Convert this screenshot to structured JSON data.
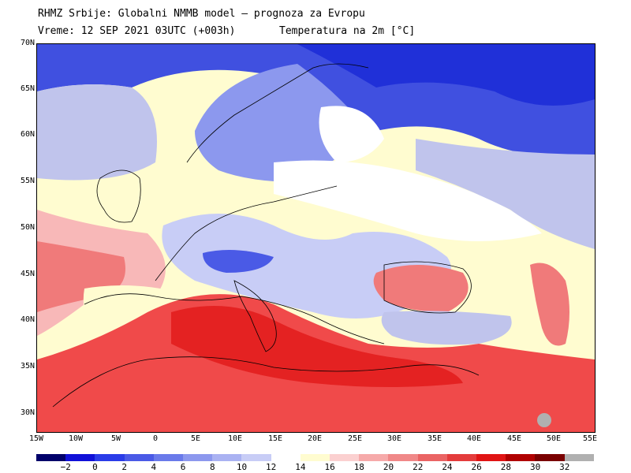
{
  "header": {
    "title": "RHMZ Srbije: Globalni NMMB model — prognoza za Evropu",
    "time": "Vreme: 12 SEP 2021 03UTC (+003h)",
    "field": "Temperatura na 2m [°C]"
  },
  "map": {
    "lat_labels": [
      "70N",
      "65N",
      "60N",
      "55N",
      "50N",
      "45N",
      "40N",
      "35N",
      "30N"
    ],
    "lon_labels": [
      "15W",
      "10W",
      "5W",
      "0",
      "5E",
      "10E",
      "15E",
      "20E",
      "25E",
      "30E",
      "35E",
      "40E",
      "45E",
      "50E",
      "55E"
    ],
    "colors": {
      "sea_warm": "#f04a4a",
      "sea_hot": "#e42222",
      "land_cool": "#c0c4ec",
      "land_cold": "#4050e0",
      "arctic": "#2030d8",
      "mild": "#ffffff",
      "pale_yellow": "#fffcd0",
      "pink": "#f8b8b8",
      "salmon": "#f07a7a",
      "outline": "#000000"
    }
  },
  "colorbar": {
    "colors": [
      "#00006a",
      "#1010d8",
      "#2a3ce8",
      "#4a5ae6",
      "#6a7aea",
      "#8c98ee",
      "#aab2f2",
      "#c8cdf6",
      "#ffffff",
      "#fffcd0",
      "#fbd0d0",
      "#f6aaaa",
      "#f08888",
      "#ea6464",
      "#e43c3c",
      "#e01414",
      "#b00000",
      "#7a0000",
      "#b0b0b0"
    ],
    "labels": [
      "−2",
      "0",
      "2",
      "4",
      "6",
      "8",
      "10",
      "12",
      "14",
      "16",
      "18",
      "20",
      "22",
      "24",
      "26",
      "28",
      "30",
      "32"
    ]
  }
}
